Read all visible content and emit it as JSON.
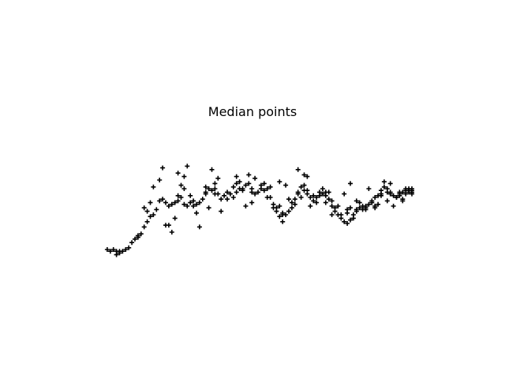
{
  "chart_data": {
    "type": "scatter",
    "title": "Median points",
    "marker": "plus",
    "color": "#000000",
    "axes_visible": false,
    "grid": false,
    "xlabel": "",
    "ylabel": "",
    "xlim": [
      0,
      100
    ],
    "ylim": [
      0,
      100
    ],
    "series": [
      {
        "points": [
          [
            1,
            20
          ],
          [
            2,
            19
          ],
          [
            3,
            20
          ],
          [
            4,
            19
          ],
          [
            5,
            19
          ],
          [
            6,
            19
          ],
          [
            7,
            20
          ],
          [
            8,
            21
          ],
          [
            9,
            24
          ],
          [
            10,
            26
          ],
          [
            11,
            28
          ],
          [
            12,
            29
          ],
          [
            13,
            33
          ],
          [
            14,
            36
          ],
          [
            15,
            39
          ],
          [
            16,
            40
          ],
          [
            17,
            43
          ],
          [
            18,
            48
          ],
          [
            19,
            49
          ],
          [
            20,
            47
          ],
          [
            21,
            45
          ],
          [
            22,
            46
          ],
          [
            23,
            47
          ],
          [
            24,
            48
          ],
          [
            25,
            50
          ],
          [
            26,
            46
          ],
          [
            27,
            45
          ],
          [
            28,
            47
          ],
          [
            29,
            45
          ],
          [
            30,
            46
          ],
          [
            31,
            47
          ],
          [
            32,
            49
          ],
          [
            33,
            52
          ],
          [
            34,
            55
          ],
          [
            35,
            54
          ],
          [
            36,
            55
          ],
          [
            37,
            52
          ],
          [
            38,
            49
          ],
          [
            39,
            51
          ],
          [
            40,
            49
          ],
          [
            41,
            52
          ],
          [
            42,
            56
          ],
          [
            43,
            58
          ],
          [
            44,
            55
          ],
          [
            45,
            54
          ],
          [
            46,
            57
          ],
          [
            47,
            58
          ],
          [
            48,
            55
          ],
          [
            49,
            52
          ],
          [
            50,
            53
          ],
          [
            51,
            55
          ],
          [
            52,
            58
          ],
          [
            53,
            55
          ],
          [
            54,
            50
          ],
          [
            55,
            46
          ],
          [
            56,
            42
          ],
          [
            57,
            39
          ],
          [
            58,
            36
          ],
          [
            59,
            40
          ],
          [
            60,
            42
          ],
          [
            61,
            44
          ],
          [
            62,
            49
          ],
          [
            63,
            53
          ],
          [
            64,
            56
          ],
          [
            65,
            57
          ],
          [
            66,
            54
          ],
          [
            67,
            50
          ],
          [
            68,
            48
          ],
          [
            69,
            50
          ],
          [
            70,
            53
          ],
          [
            71,
            55
          ],
          [
            72,
            53
          ],
          [
            73,
            49
          ],
          [
            74,
            45
          ],
          [
            75,
            42
          ],
          [
            76,
            40
          ],
          [
            77,
            38
          ],
          [
            78,
            36
          ],
          [
            79,
            35
          ],
          [
            80,
            37
          ],
          [
            81,
            40
          ],
          [
            82,
            43
          ],
          [
            83,
            44
          ],
          [
            84,
            45
          ],
          [
            85,
            45
          ],
          [
            86,
            46
          ],
          [
            87,
            48
          ],
          [
            88,
            50
          ],
          [
            89,
            51
          ],
          [
            90,
            54
          ],
          [
            91,
            56
          ],
          [
            92,
            55
          ],
          [
            93,
            53
          ],
          [
            94,
            51
          ],
          [
            95,
            50
          ],
          [
            96,
            51
          ],
          [
            97,
            53
          ],
          [
            98,
            54
          ],
          [
            99,
            54
          ],
          [
            100,
            54
          ],
          [
            16,
            56
          ],
          [
            18,
            60
          ],
          [
            19,
            67
          ],
          [
            21,
            34
          ],
          [
            22,
            30
          ],
          [
            24,
            64
          ],
          [
            25,
            57
          ],
          [
            26,
            62
          ],
          [
            27,
            68
          ],
          [
            28,
            51
          ],
          [
            29,
            48
          ],
          [
            30,
            41
          ],
          [
            31,
            33
          ],
          [
            33,
            56
          ],
          [
            35,
            66
          ],
          [
            36,
            58
          ],
          [
            37,
            61
          ],
          [
            40,
            53
          ],
          [
            43,
            62
          ],
          [
            44,
            59
          ],
          [
            47,
            63
          ],
          [
            49,
            61
          ],
          [
            52,
            54
          ],
          [
            54,
            56
          ],
          [
            57,
            59
          ],
          [
            59,
            57
          ],
          [
            63,
            66
          ],
          [
            65,
            63
          ],
          [
            66,
            62
          ],
          [
            73,
            53
          ],
          [
            74,
            40
          ],
          [
            78,
            52
          ],
          [
            80,
            58
          ],
          [
            82,
            48
          ],
          [
            83,
            47
          ],
          [
            85,
            43
          ],
          [
            86,
            55
          ],
          [
            88,
            45
          ],
          [
            89,
            46
          ],
          [
            90,
            51
          ],
          [
            92,
            48
          ],
          [
            94,
            45
          ],
          [
            96,
            53
          ],
          [
            97,
            49
          ],
          [
            98,
            55
          ],
          [
            99,
            55
          ],
          [
            100,
            55
          ],
          [
            4,
            17
          ],
          [
            5,
            18
          ],
          [
            13,
            44
          ],
          [
            20,
            34
          ],
          [
            23,
            38
          ],
          [
            34,
            44
          ],
          [
            38,
            42
          ],
          [
            42,
            50
          ],
          [
            46,
            45
          ],
          [
            48,
            47
          ],
          [
            56,
            44
          ],
          [
            58,
            40
          ],
          [
            60,
            49
          ],
          [
            62,
            46
          ],
          [
            64,
            50
          ],
          [
            67,
            45
          ],
          [
            69,
            47
          ],
          [
            72,
            47
          ],
          [
            75,
            44
          ],
          [
            77,
            40
          ],
          [
            79,
            41
          ],
          [
            81,
            38
          ],
          [
            84,
            43
          ],
          [
            87,
            47
          ],
          [
            91,
            59
          ],
          [
            93,
            58
          ],
          [
            95,
            50
          ],
          [
            97,
            48
          ],
          [
            99,
            53
          ],
          [
            100,
            53
          ],
          [
            11,
            27
          ],
          [
            14,
            42
          ],
          [
            15,
            47
          ],
          [
            24,
            51
          ],
          [
            26,
            55
          ],
          [
            33,
            53
          ],
          [
            36,
            52
          ],
          [
            43,
            53
          ],
          [
            45,
            55
          ],
          [
            48,
            53
          ],
          [
            51,
            57
          ],
          [
            53,
            50
          ],
          [
            55,
            44
          ],
          [
            57,
            45
          ],
          [
            58,
            41
          ],
          [
            61,
            47
          ],
          [
            63,
            52
          ],
          [
            65,
            54
          ],
          [
            66,
            52
          ],
          [
            68,
            51
          ],
          [
            70,
            51
          ],
          [
            71,
            52
          ],
          [
            72,
            51
          ],
          [
            74,
            48
          ],
          [
            76,
            45
          ],
          [
            79,
            43
          ],
          [
            80,
            44
          ],
          [
            82,
            42
          ],
          [
            85,
            44
          ],
          [
            88,
            44
          ],
          [
            90,
            52
          ],
          [
            92,
            53
          ],
          [
            93,
            52
          ],
          [
            96,
            52
          ],
          [
            98,
            52
          ],
          [
            100,
            52
          ]
        ]
      }
    ]
  }
}
